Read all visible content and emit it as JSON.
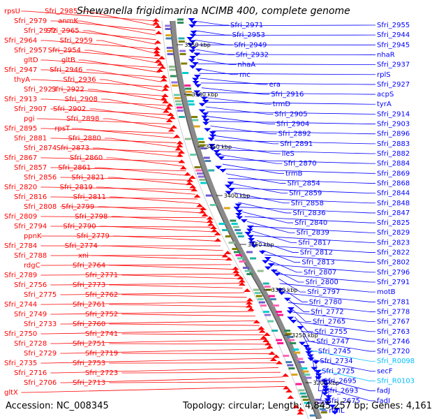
{
  "title": "Shewanella frigidimarina NCIMB 400, complete genome",
  "accession": "Accession: NC_008345",
  "summary": "Topology: circular; Length: 4,845,257 bp; Genes: 4,161",
  "colors": {
    "reverse_strand": "#ff0000",
    "forward_strand": "#0000ff",
    "rna": "#00bfff",
    "backbone": "#8a8a8a"
  },
  "ticks": [
    "3550 kbp",
    "3500 kbp",
    "3450 kbp",
    "3400 kbp",
    "3350 kbp",
    "3300 kbp",
    "3250 kbp",
    "3200 kbp"
  ],
  "left_labels": [
    "rpsU",
    "Sfri_2985",
    "Sfri_2979",
    "anmK",
    "Sfri_2972",
    "Sfri_2965",
    "Sfri_2964",
    "Sfri_2959",
    "Sfri_2957",
    "Sfri_2954",
    "gltD",
    "gltB",
    "Sfri_2947",
    "Sfri_2946",
    "thyA",
    "Sfri_2936",
    "Sfri_2923",
    "Sfri_2922",
    "Sfri_2913",
    "Sfri_2908",
    "Sfri_2907",
    "Sfri_2902",
    "pgi",
    "Sfri_2898",
    "Sfri_2895",
    "rpsT",
    "Sfri_2881",
    "Sfri_2880",
    "Sfri_2874",
    "Sfri_2873",
    "Sfri_2867",
    "Sfri_2860",
    "Sfri_2857",
    "Sfri_2861",
    "Sfri_2856",
    "Sfri_2821",
    "Sfri_2820",
    "Sfri_2819",
    "Sfri_2816",
    "Sfri_2811",
    "Sfri_2808",
    "Sfri_2799",
    "Sfri_2809",
    "Sfri_2798",
    "Sfri_2794",
    "Sfri_2790",
    "ppnK",
    "Sfri_2779",
    "Sfri_2784",
    "Sfri_2774",
    "Sfri_2788",
    "xni",
    "rdgC",
    "Sfri_2764",
    "Sfri_2789",
    "Sfri_2771",
    "Sfri_2756",
    "Sfri_2773",
    "Sfri_2775",
    "Sfri_2762",
    "Sfri_2744",
    "Sfri_2761",
    "Sfri_2749",
    "Sfri_2752",
    "Sfri_2733",
    "Sfri_2760",
    "Sfri_2750",
    "Sfri_2741",
    "Sfri_2728",
    "Sfri_2751",
    "Sfri_2729",
    "Sfri_2719",
    "Sfri_2735",
    "Sfri_2753",
    "Sfri_2716",
    "Sfri_2723",
    "Sfri_2706",
    "Sfri_2713",
    "gltX"
  ],
  "right_labels": [
    "Sfri_2971",
    "Sfri_2955",
    "Sfri_2953",
    "Sfri_2944",
    "Sfri_2949",
    "Sfri_2945",
    "Sfri_2932",
    "nhaR",
    "nhaA",
    "Sfri_2937",
    "rnc",
    "rplS",
    "era",
    "Sfri_2927",
    "Sfri_2916",
    "acpS",
    "trmD",
    "tyrA",
    "Sfri_2905",
    "Sfri_2914",
    "Sfri_2904",
    "Sfri_2903",
    "Sfri_2892",
    "Sfri_2896",
    "Sfri_2891",
    "Sfri_2883",
    "ileS",
    "Sfri_2882",
    "Sfri_2870",
    "Sfri_2884",
    "trmB",
    "Sfri_2869",
    "Sfri_2854",
    "Sfri_2868",
    "Sfri_2859",
    "Sfri_2844",
    "Sfri_2858",
    "Sfri_2848",
    "Sfri_2836",
    "Sfri_2847",
    "Sfri_2840",
    "Sfri_2825",
    "Sfri_2839",
    "Sfri_2829",
    "Sfri_2817",
    "Sfri_2823",
    "Sfri_2812",
    "Sfri_2822",
    "Sfri_2813",
    "Sfri_2802",
    "Sfri_2807",
    "Sfri_2796",
    "Sfri_2800",
    "Sfri_2791",
    "Sfri_2797",
    "motB",
    "Sfri_2780",
    "Sfri_2781",
    "Sfri_2772",
    "Sfri_2778",
    "Sfri_2765",
    "Sfri_2767",
    "Sfri_2755",
    "Sfri_2763",
    "Sfri_2747",
    "Sfri_2746",
    "Sfri_2745",
    "Sfri_2720",
    "Sfri_2734",
    "Sfri_R0098",
    "Sfri_2725",
    "secF",
    "Sfri_2695",
    "Sfri_R0103",
    "Sfri_2693",
    "fadJ",
    "Sfri_2675",
    "fadI",
    "rlmL"
  ]
}
